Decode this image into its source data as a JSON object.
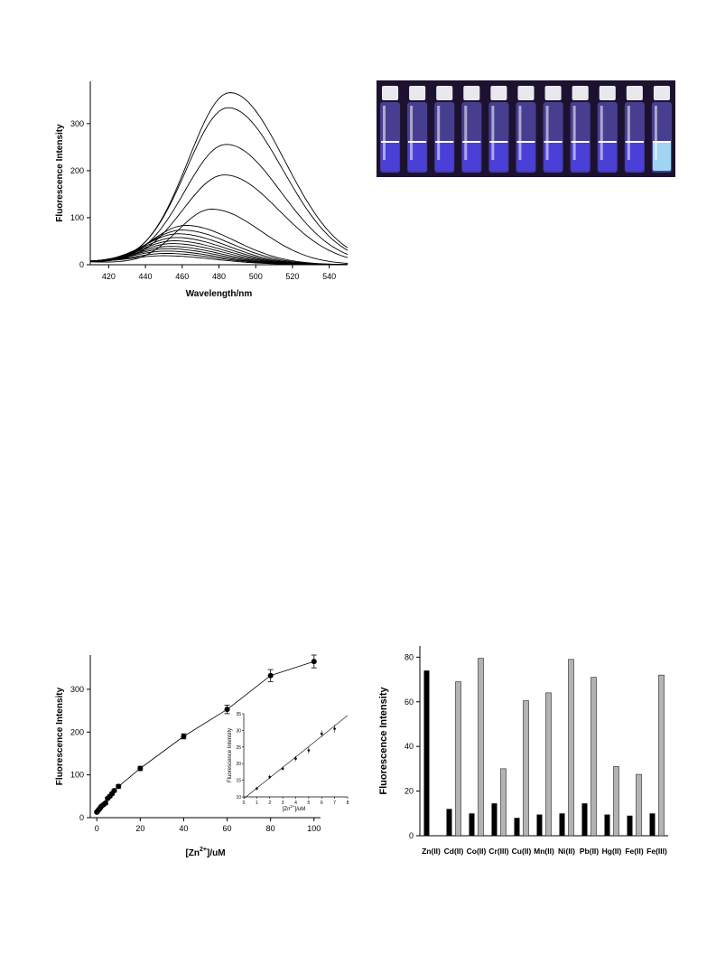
{
  "chart_data": [
    {
      "type": "line",
      "ylabel": "Fluorescence Intensity",
      "xlabel": "Wavelength/nm",
      "xlim": [
        410,
        550
      ],
      "ylim": [
        0,
        390
      ],
      "xticks": [
        420,
        440,
        460,
        480,
        500,
        520,
        540
      ],
      "yticks": [
        0,
        100,
        200,
        300
      ],
      "series": [
        {
          "peak_x": 486,
          "peak_y": 365
        },
        {
          "peak_x": 485,
          "peak_y": 333
        },
        {
          "peak_x": 484,
          "peak_y": 255
        },
        {
          "peak_x": 483,
          "peak_y": 190
        },
        {
          "peak_x": 476,
          "peak_y": 117
        },
        {
          "peak_x": 462,
          "peak_y": 82
        },
        {
          "peak_x": 460,
          "peak_y": 72
        },
        {
          "peak_x": 458,
          "peak_y": 64
        },
        {
          "peak_x": 457,
          "peak_y": 56
        },
        {
          "peak_x": 456,
          "peak_y": 49
        },
        {
          "peak_x": 455,
          "peak_y": 43
        },
        {
          "peak_x": 454,
          "peak_y": 37
        },
        {
          "peak_x": 453,
          "peak_y": 32
        },
        {
          "peak_x": 452,
          "peak_y": 27
        },
        {
          "peak_x": 452,
          "peak_y": 22
        },
        {
          "peak_x": 451,
          "peak_y": 17
        }
      ]
    },
    {
      "type": "scatter",
      "ylabel": "Fluorescence Intensity",
      "xlabel_main": "[Zn",
      "xlabel_sup": "2+",
      "xlabel_tail": "]/uM",
      "xlim": [
        -3,
        103
      ],
      "ylim": [
        0,
        380
      ],
      "xticks": [
        0,
        20,
        40,
        60,
        80,
        100
      ],
      "yticks": [
        0,
        100,
        200,
        300
      ],
      "x": [
        0,
        0.5,
        1,
        1.5,
        2,
        3,
        4,
        5,
        6,
        7,
        8,
        10,
        20,
        40,
        60,
        80,
        100
      ],
      "y": [
        13,
        16,
        19,
        22,
        26,
        30,
        34,
        45,
        50,
        56,
        63,
        73,
        115,
        190,
        253,
        332,
        365
      ],
      "error": [
        2,
        2,
        2,
        2,
        2,
        2,
        3,
        3,
        3,
        3,
        3,
        4,
        5,
        6,
        10,
        14,
        15
      ],
      "inset": {
        "ylabel": "Fluorescence Intensity",
        "xlabel_main": "[Zn",
        "xlabel_sup": "2+",
        "xlabel_tail": "]/uM",
        "xlim": [
          0,
          8
        ],
        "ylim": [
          10,
          35
        ],
        "xticks": [
          0,
          1,
          2,
          3,
          4,
          5,
          6,
          7,
          8
        ],
        "yticks": [
          10,
          15,
          20,
          25,
          30,
          35
        ],
        "x": [
          1,
          2,
          3,
          4,
          5,
          6,
          7
        ],
        "y": [
          12.5,
          16,
          18.5,
          21.5,
          24,
          29,
          30.5
        ],
        "error": [
          0.5,
          0.6,
          0.6,
          0.8,
          1,
          1,
          1.2
        ],
        "fit": {
          "x": [
            0,
            8
          ],
          "y": [
            9.5,
            34.5
          ]
        }
      }
    },
    {
      "type": "bar",
      "ylabel": "Fluorescence Intensity",
      "categories": [
        "Zn(II)",
        "Cd(II)",
        "Co(II)",
        "Cr(III)",
        "Cu(II)",
        "Mn(II)",
        "Ni(II)",
        "Pb(II)",
        "Hg(II)",
        "Fe(II)",
        "Fe(III)"
      ],
      "ylim": [
        0,
        85
      ],
      "yticks": [
        0,
        20,
        40,
        60,
        80
      ],
      "series": [
        {
          "values": [
            74,
            12,
            10,
            14.5,
            8,
            9.5,
            10,
            14.5,
            9.5,
            9,
            10
          ],
          "color": "#000000"
        },
        {
          "values": [
            null,
            69,
            79.5,
            30,
            60.5,
            64,
            79,
            71,
            31,
            27.5,
            72
          ],
          "color": "#b3b3b3"
        }
      ]
    }
  ],
  "photo": {
    "vials": 11,
    "colors": {
      "dark": "#4a3fd6",
      "bright": "#9fd4f2",
      "background": "#1c1230"
    }
  }
}
